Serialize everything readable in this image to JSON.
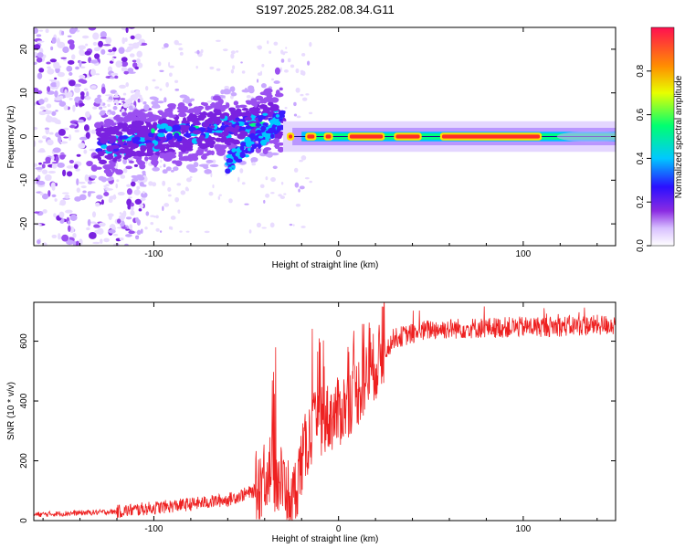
{
  "title": "S197.2025.282.08.34.G11",
  "chart_data": [
    {
      "type": "heatmap",
      "name": "spectrogram",
      "xlabel": "Height of straight line (km)",
      "ylabel": "Frequency (Hz)",
      "xlim": [
        -165,
        150
      ],
      "ylim": [
        -25,
        25
      ],
      "xticks": [
        -100,
        0,
        100
      ],
      "yticks": [
        -20,
        -10,
        0,
        10,
        20
      ],
      "colorbar": {
        "label": "Normalized spectral amplitude",
        "range": [
          0,
          1
        ],
        "ticks": [
          0.0,
          0.2,
          0.4,
          0.6,
          0.8
        ],
        "colors": [
          "#ffffff",
          "#c9a8ff",
          "#8a2be2",
          "#3a1cff",
          "#00c8ff",
          "#00ff80",
          "#ffe000",
          "#ff2020"
        ]
      },
      "features": {
        "main_line": {
          "x_start": -30,
          "x_end": 150,
          "frequency_hz": 0
        },
        "diffuse_noise_region": {
          "x_start": -165,
          "x_end": -120
        }
      }
    },
    {
      "type": "line",
      "name": "snr",
      "xlabel": "Height of straight line (km)",
      "ylabel": "SNR (10 * v/v)",
      "xlim": [
        -165,
        150
      ],
      "ylim": [
        0,
        730
      ],
      "xticks": [
        -100,
        0,
        100
      ],
      "yticks": [
        0,
        200,
        400,
        600
      ],
      "color": "#ee2020",
      "trend_x": [
        -165,
        -120,
        -80,
        -60,
        -45,
        -38,
        -30,
        -25,
        -20,
        -15,
        -10,
        0,
        10,
        20,
        30,
        50,
        80,
        120,
        150
      ],
      "trend_y": [
        20,
        30,
        55,
        70,
        100,
        180,
        120,
        60,
        200,
        300,
        330,
        360,
        430,
        520,
        610,
        640,
        645,
        650,
        655
      ]
    }
  ]
}
